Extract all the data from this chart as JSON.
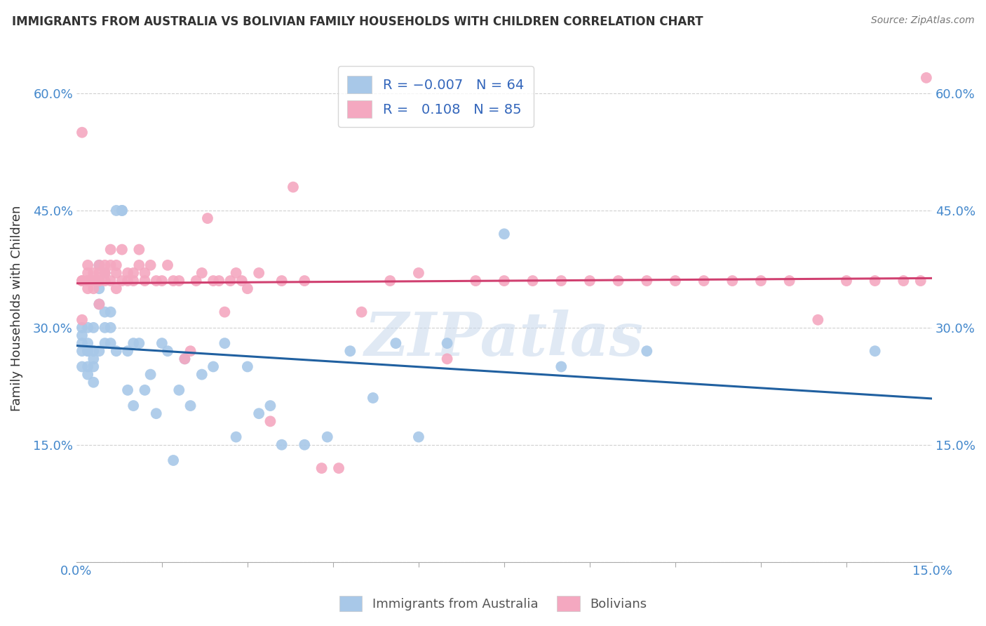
{
  "title": "IMMIGRANTS FROM AUSTRALIA VS BOLIVIAN FAMILY HOUSEHOLDS WITH CHILDREN CORRELATION CHART",
  "source": "Source: ZipAtlas.com",
  "ylabel": "Family Households with Children",
  "color_blue": "#a8c8e8",
  "color_pink": "#f4a8c0",
  "line_color_blue": "#2060a0",
  "line_color_pink": "#d04070",
  "watermark": "ZIPatlas",
  "legend_label1": "Immigrants from Australia",
  "legend_label2": "Bolivians",
  "blue_x": [
    0.001,
    0.001,
    0.001,
    0.001,
    0.001,
    0.002,
    0.002,
    0.002,
    0.002,
    0.002,
    0.002,
    0.003,
    0.003,
    0.003,
    0.003,
    0.003,
    0.004,
    0.004,
    0.004,
    0.004,
    0.005,
    0.005,
    0.005,
    0.005,
    0.006,
    0.006,
    0.006,
    0.007,
    0.007,
    0.008,
    0.008,
    0.009,
    0.009,
    0.01,
    0.01,
    0.011,
    0.012,
    0.013,
    0.014,
    0.015,
    0.016,
    0.017,
    0.018,
    0.019,
    0.02,
    0.022,
    0.024,
    0.026,
    0.028,
    0.03,
    0.032,
    0.034,
    0.036,
    0.04,
    0.044,
    0.048,
    0.052,
    0.056,
    0.06,
    0.065,
    0.075,
    0.085,
    0.1,
    0.14
  ],
  "blue_y": [
    0.27,
    0.29,
    0.25,
    0.3,
    0.28,
    0.27,
    0.24,
    0.3,
    0.28,
    0.25,
    0.27,
    0.25,
    0.26,
    0.23,
    0.27,
    0.3,
    0.27,
    0.35,
    0.38,
    0.33,
    0.32,
    0.28,
    0.3,
    0.37,
    0.3,
    0.32,
    0.28,
    0.27,
    0.45,
    0.45,
    0.45,
    0.27,
    0.22,
    0.2,
    0.28,
    0.28,
    0.22,
    0.24,
    0.19,
    0.28,
    0.27,
    0.13,
    0.22,
    0.26,
    0.2,
    0.24,
    0.25,
    0.28,
    0.16,
    0.25,
    0.19,
    0.2,
    0.15,
    0.15,
    0.16,
    0.27,
    0.21,
    0.28,
    0.16,
    0.28,
    0.42,
    0.25,
    0.27,
    0.27
  ],
  "pink_x": [
    0.001,
    0.001,
    0.001,
    0.001,
    0.002,
    0.002,
    0.002,
    0.002,
    0.002,
    0.003,
    0.003,
    0.003,
    0.003,
    0.004,
    0.004,
    0.004,
    0.004,
    0.004,
    0.005,
    0.005,
    0.005,
    0.005,
    0.006,
    0.006,
    0.006,
    0.007,
    0.007,
    0.007,
    0.008,
    0.008,
    0.009,
    0.009,
    0.01,
    0.01,
    0.011,
    0.011,
    0.012,
    0.012,
    0.013,
    0.014,
    0.015,
    0.016,
    0.017,
    0.018,
    0.019,
    0.02,
    0.021,
    0.022,
    0.023,
    0.024,
    0.025,
    0.026,
    0.027,
    0.028,
    0.029,
    0.03,
    0.032,
    0.034,
    0.036,
    0.038,
    0.04,
    0.043,
    0.046,
    0.05,
    0.055,
    0.06,
    0.065,
    0.07,
    0.075,
    0.08,
    0.085,
    0.09,
    0.095,
    0.1,
    0.105,
    0.11,
    0.115,
    0.12,
    0.125,
    0.13,
    0.135,
    0.14,
    0.145,
    0.148,
    0.149
  ],
  "pink_y": [
    0.55,
    0.36,
    0.36,
    0.31,
    0.35,
    0.36,
    0.38,
    0.37,
    0.36,
    0.36,
    0.37,
    0.36,
    0.35,
    0.37,
    0.36,
    0.38,
    0.36,
    0.33,
    0.36,
    0.38,
    0.37,
    0.37,
    0.4,
    0.36,
    0.38,
    0.35,
    0.37,
    0.38,
    0.4,
    0.36,
    0.37,
    0.36,
    0.37,
    0.36,
    0.38,
    0.4,
    0.37,
    0.36,
    0.38,
    0.36,
    0.36,
    0.38,
    0.36,
    0.36,
    0.26,
    0.27,
    0.36,
    0.37,
    0.44,
    0.36,
    0.36,
    0.32,
    0.36,
    0.37,
    0.36,
    0.35,
    0.37,
    0.18,
    0.36,
    0.48,
    0.36,
    0.12,
    0.12,
    0.32,
    0.36,
    0.37,
    0.26,
    0.36,
    0.36,
    0.36,
    0.36,
    0.36,
    0.36,
    0.36,
    0.36,
    0.36,
    0.36,
    0.36,
    0.36,
    0.31,
    0.36,
    0.36,
    0.36,
    0.36,
    0.62
  ],
  "xlim": [
    0.0,
    0.15
  ],
  "ylim": [
    0.0,
    0.65
  ],
  "ytick_vals": [
    0.0,
    0.15,
    0.3,
    0.45,
    0.6
  ],
  "ytick_labels": [
    "",
    "15.0%",
    "30.0%",
    "45.0%",
    "60.0%"
  ],
  "xtick_vals": [
    0.0,
    0.15
  ],
  "xtick_labels": [
    "0.0%",
    "15.0%"
  ],
  "grid_color": "#d0d0d0",
  "title_fontsize": 12,
  "tick_fontsize": 13,
  "ylabel_fontsize": 13
}
